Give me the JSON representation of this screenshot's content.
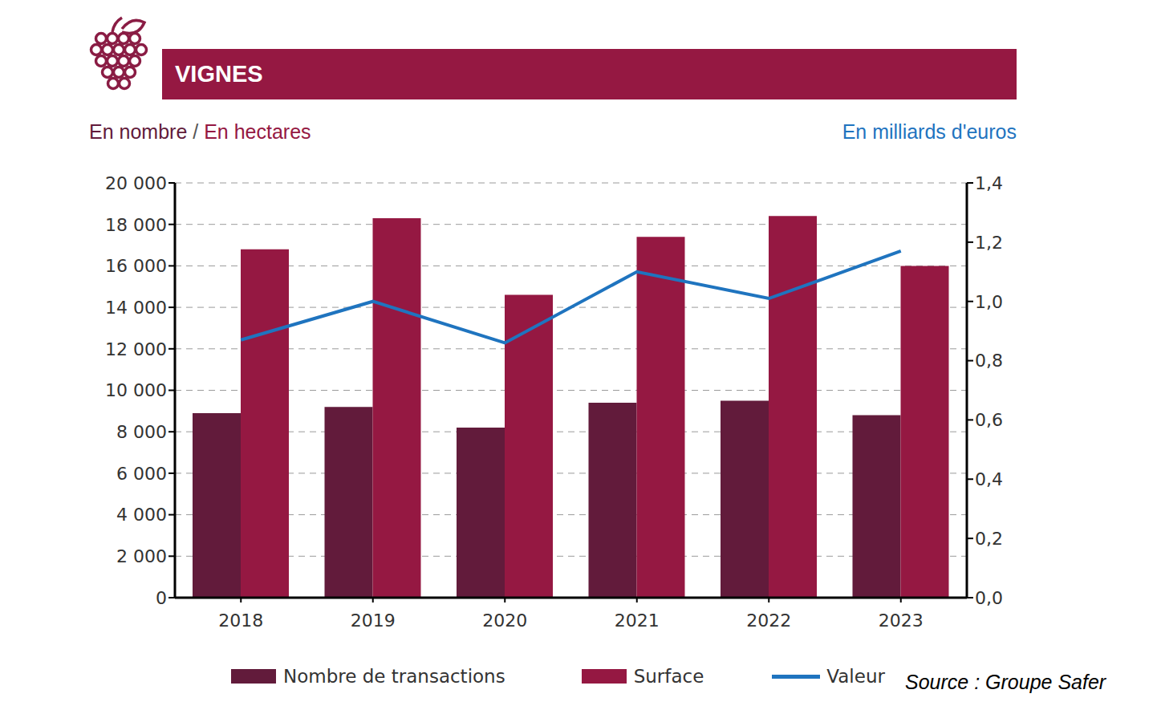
{
  "chart_data": {
    "type": "bar",
    "title": "VIGNES",
    "y_label": "En nombre / En hectares",
    "y2_label": "En milliards d'euros",
    "source": "Source : Groupe Safer",
    "categories": [
      "2018",
      "2019",
      "2020",
      "2021",
      "2022",
      "2023"
    ],
    "series": [
      {
        "name": "Nombre de transactions",
        "type": "bar",
        "color": "#621B3B",
        "values": [
          8900,
          9200,
          8200,
          9400,
          9500,
          8800
        ]
      },
      {
        "name": "Surface",
        "type": "bar",
        "color": "#951842",
        "values": [
          16800,
          18300,
          14600,
          17400,
          18400,
          16000
        ]
      },
      {
        "name": "Valeur",
        "type": "line",
        "axis": "y2",
        "color": "#1F74BF",
        "values": [
          0.87,
          1.0,
          0.86,
          1.1,
          1.01,
          1.17
        ]
      }
    ],
    "ylim": [
      0,
      20000
    ],
    "yticks": [
      0,
      {
        "value": 2000,
        "label": "2 000"
      },
      {
        "value": 4000,
        "label": "4 000"
      },
      {
        "value": 6000,
        "label": "6 000"
      },
      {
        "value": 8000,
        "label": "8 000"
      },
      {
        "value": 10000,
        "label": "10 000"
      },
      {
        "value": 12000,
        "label": "12 000"
      },
      {
        "value": 14000,
        "label": "14 000"
      },
      {
        "value": 16000,
        "label": "16 000"
      },
      {
        "value": 18000,
        "label": "18 000"
      },
      {
        "value": 20000,
        "label": "20 000"
      }
    ],
    "y2lim": [
      0,
      1.4
    ],
    "y2ticks": [
      {
        "value": 0,
        "label": "0,0"
      },
      {
        "value": 0.2,
        "label": "0,2"
      },
      {
        "value": 0.4,
        "label": "0,4"
      },
      {
        "value": 0.6,
        "label": "0,6"
      },
      {
        "value": 0.8,
        "label": "0,8"
      },
      {
        "value": 1.0,
        "label": "1,0"
      },
      {
        "value": 1.2,
        "label": "1,2"
      },
      {
        "value": 1.4,
        "label": "1,4"
      }
    ],
    "grid": true,
    "legend": "bottom"
  }
}
